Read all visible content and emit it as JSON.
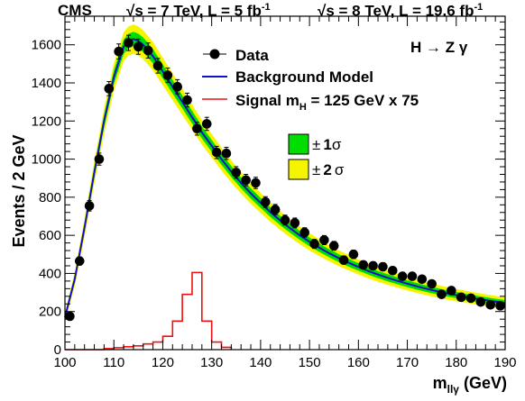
{
  "header": {
    "experiment": "CMS",
    "lumi_7_prefix": "s = 7 TeV, L = 5 fb",
    "lumi_7_exp": "-1",
    "lumi_8_prefix": "s = 8 TeV, L = 19.6 fb",
    "lumi_8_exp": "-1"
  },
  "colors": {
    "data": "#000000",
    "background": "#1010cc",
    "band1": "#00dd00",
    "band2": "#f5f500",
    "signal": "#ee1111"
  },
  "chart_data": {
    "type": "line",
    "annotation": "H → Z γ",
    "xlabel": "m",
    "xlabel_sub": "llγ",
    "xlabel_unit": "(GeV)",
    "ylabel": "Events / 2 GeV",
    "xlim": [
      100,
      190
    ],
    "ylim": [
      0,
      1750
    ],
    "xticks": [
      100,
      110,
      120,
      130,
      140,
      150,
      160,
      170,
      180,
      190
    ],
    "yticks": [
      0,
      200,
      400,
      600,
      800,
      1000,
      1200,
      1400,
      1600
    ],
    "legend": {
      "placement": "top-right",
      "data": "Data",
      "background": "Background Model",
      "signal_prefix": "Signal m",
      "signal_sub": "H",
      "signal_suffix": " = 125 GeV x 75",
      "band1_pm": "±",
      "band1_n": "1",
      "band1_sigma": "σ",
      "band2_pm": "±",
      "band2_n": "2",
      "band2_sigma": "σ"
    },
    "series": [
      {
        "name": "Data",
        "style": "points",
        "x": [
          101,
          103,
          105,
          107,
          109,
          111,
          113,
          115,
          117,
          119,
          121,
          123,
          125,
          127,
          129,
          131,
          133,
          135,
          137,
          139,
          141,
          143,
          145,
          147,
          149,
          151,
          153,
          155,
          157,
          159,
          161,
          163,
          165,
          167,
          169,
          171,
          173,
          175,
          177,
          179,
          181,
          183,
          185,
          187,
          189
        ],
        "y": [
          175,
          465,
          755,
          1000,
          1370,
          1565,
          1610,
          1590,
          1570,
          1490,
          1440,
          1380,
          1310,
          1160,
          1185,
          1035,
          1030,
          930,
          890,
          875,
          775,
          735,
          680,
          665,
          615,
          555,
          575,
          545,
          470,
          500,
          445,
          440,
          435,
          415,
          385,
          385,
          370,
          345,
          290,
          310,
          275,
          270,
          250,
          235,
          230
        ]
      },
      {
        "name": "Background Model",
        "style": "line",
        "x": [
          100,
          102,
          104,
          106,
          108,
          110,
          112,
          113,
          114,
          115,
          116,
          118,
          120,
          122,
          124,
          126,
          128,
          130,
          132,
          134,
          136,
          138,
          140,
          142,
          144,
          146,
          148,
          150,
          152,
          154,
          156,
          158,
          160,
          162,
          164,
          166,
          168,
          170,
          172,
          174,
          176,
          178,
          180,
          182,
          184,
          186,
          188,
          190
        ],
        "y": [
          170,
          370,
          640,
          930,
          1200,
          1430,
          1590,
          1620,
          1630,
          1620,
          1600,
          1540,
          1460,
          1380,
          1300,
          1220,
          1140,
          1070,
          1000,
          935,
          875,
          820,
          770,
          722,
          678,
          638,
          600,
          566,
          535,
          506,
          480,
          456,
          434,
          413,
          394,
          377,
          361,
          346,
          332,
          319,
          307,
          296,
          286,
          277,
          268,
          260,
          252,
          245
        ]
      },
      {
        "name": "Signal m H = 125 GeV x 75",
        "style": "step",
        "edges": [
          100,
          102,
          104,
          106,
          108,
          110,
          112,
          114,
          116,
          118,
          120,
          122,
          124,
          126,
          128,
          130,
          132,
          134
        ],
        "values": [
          0,
          0,
          0,
          0,
          5,
          10,
          15,
          20,
          30,
          40,
          70,
          150,
          290,
          405,
          150,
          40,
          12,
          3
        ]
      }
    ]
  }
}
